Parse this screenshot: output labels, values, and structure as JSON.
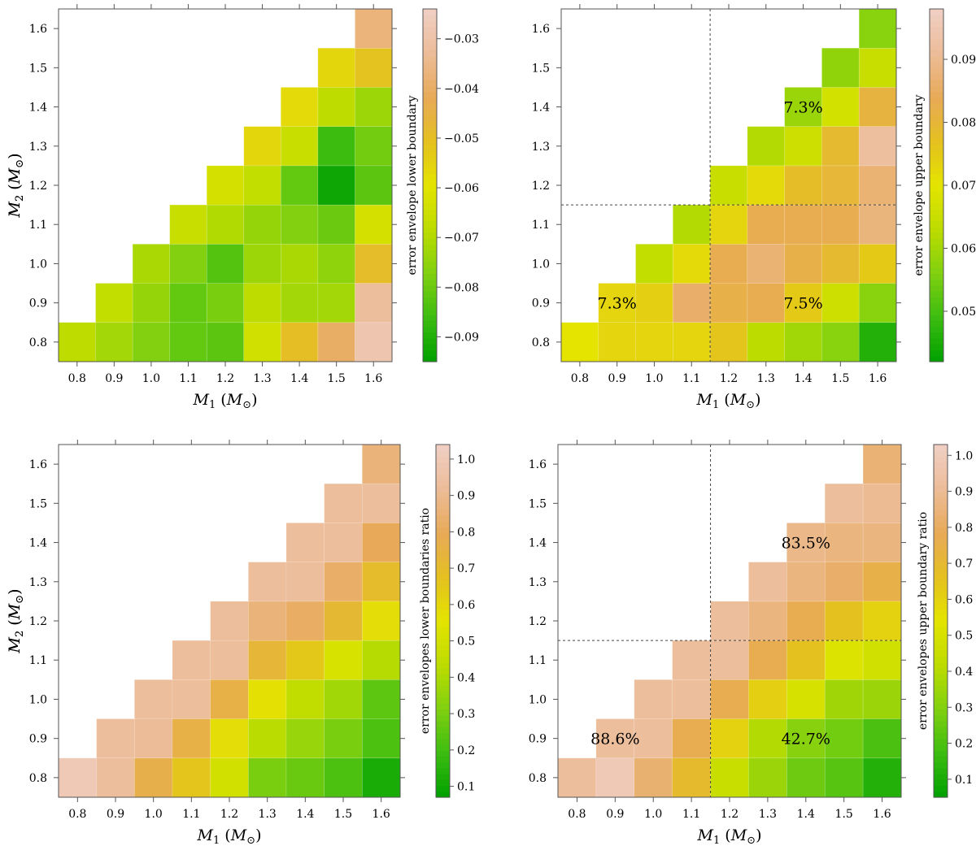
{
  "chart_data": [
    {
      "type": "heatmap",
      "xlabel": "M₁ (M⊙)",
      "ylabel": "M₂ (M⊙)",
      "x": [
        0.8,
        0.9,
        1.0,
        1.1,
        1.2,
        1.3,
        1.4,
        1.5,
        1.6
      ],
      "y": [
        0.8,
        0.9,
        1.0,
        1.1,
        1.2,
        1.3,
        1.4,
        1.5,
        1.6
      ],
      "xlim": [
        0.75,
        1.65
      ],
      "ylim": [
        0.75,
        1.65
      ],
      "colorbar": {
        "label": "error envelope lower boundary",
        "range": [
          -0.095,
          -0.024
        ],
        "ticks": [
          -0.09,
          -0.08,
          -0.07,
          -0.06,
          -0.05,
          -0.04,
          -0.03
        ],
        "tick_labels": [
          "−0.09",
          "−0.08",
          "−0.07",
          "−0.06",
          "−0.05",
          "−0.04",
          "−0.03"
        ]
      },
      "values": [
        [
          -0.068,
          -0.072,
          -0.077,
          -0.081,
          -0.082,
          -0.064,
          -0.05,
          -0.04,
          -0.028
        ],
        [
          null,
          -0.067,
          -0.074,
          -0.081,
          -0.078,
          -0.068,
          -0.072,
          -0.072,
          -0.032
        ],
        [
          null,
          null,
          -0.071,
          -0.077,
          -0.083,
          -0.073,
          -0.071,
          -0.075,
          -0.049
        ],
        [
          null,
          null,
          null,
          -0.066,
          -0.07,
          -0.074,
          -0.077,
          -0.08,
          -0.063
        ],
        [
          null,
          null,
          null,
          null,
          -0.063,
          -0.067,
          -0.081,
          -0.093,
          -0.082
        ],
        [
          null,
          null,
          null,
          null,
          null,
          -0.056,
          -0.066,
          -0.086,
          -0.079
        ],
        [
          null,
          null,
          null,
          null,
          null,
          null,
          -0.057,
          -0.068,
          -0.073
        ],
        [
          null,
          null,
          null,
          null,
          null,
          null,
          null,
          -0.056,
          -0.051
        ],
        [
          null,
          null,
          null,
          null,
          null,
          null,
          null,
          null,
          -0.037
        ]
      ],
      "annotations": [],
      "divider": null
    },
    {
      "type": "heatmap",
      "xlabel": "M₁ (M⊙)",
      "ylabel": "M₂ (M⊙)",
      "x": [
        0.8,
        0.9,
        1.0,
        1.1,
        1.2,
        1.3,
        1.4,
        1.5,
        1.6
      ],
      "y": [
        0.8,
        0.9,
        1.0,
        1.1,
        1.2,
        1.3,
        1.4,
        1.5,
        1.6
      ],
      "xlim": [
        0.75,
        1.65
      ],
      "ylim": [
        0.75,
        1.65
      ],
      "colorbar": {
        "label": "error envelope upper boundary",
        "range": [
          0.042,
          0.098
        ],
        "ticks": [
          0.05,
          0.06,
          0.07,
          0.08,
          0.09
        ],
        "tick_labels": [
          "0.05",
          "0.06",
          "0.07",
          "0.08",
          "0.09"
        ]
      },
      "values": [
        [
          0.07,
          0.073,
          0.073,
          0.073,
          0.076,
          0.063,
          0.06,
          0.057,
          0.046
        ],
        [
          null,
          0.073,
          0.074,
          0.086,
          0.082,
          0.083,
          0.075,
          0.066,
          0.057
        ],
        [
          null,
          null,
          0.064,
          0.072,
          0.083,
          0.087,
          0.082,
          0.079,
          0.075
        ],
        [
          null,
          null,
          null,
          0.062,
          0.073,
          0.083,
          0.083,
          0.083,
          0.088
        ],
        [
          null,
          null,
          null,
          null,
          0.065,
          0.072,
          0.078,
          0.08,
          0.087
        ],
        [
          null,
          null,
          null,
          null,
          null,
          0.062,
          0.066,
          0.079,
          0.092
        ],
        [
          null,
          null,
          null,
          null,
          null,
          null,
          0.059,
          0.067,
          0.081
        ],
        [
          null,
          null,
          null,
          null,
          null,
          null,
          null,
          0.058,
          0.065
        ],
        [
          null,
          null,
          null,
          null,
          null,
          null,
          null,
          null,
          0.057
        ]
      ],
      "annotations": [
        {
          "x": 1.4,
          "y": 1.4,
          "text": "7.3%"
        },
        {
          "x": 0.9,
          "y": 0.9,
          "text": "7.3%"
        },
        {
          "x": 1.4,
          "y": 0.9,
          "text": "7.5%"
        }
      ],
      "divider": {
        "x": 1.15,
        "y": 1.15
      }
    },
    {
      "type": "heatmap",
      "xlabel": "M₁ (M⊙)",
      "ylabel": "M₂ (M⊙)",
      "x": [
        0.8,
        0.9,
        1.0,
        1.1,
        1.2,
        1.3,
        1.4,
        1.5,
        1.6
      ],
      "y": [
        0.8,
        0.9,
        1.0,
        1.1,
        1.2,
        1.3,
        1.4,
        1.5,
        1.6
      ],
      "xlim": [
        0.75,
        1.65
      ],
      "ylim": [
        0.75,
        1.65
      ],
      "colorbar": {
        "label": "error envelopes lower boundaries ratio",
        "range": [
          0.07,
          1.04
        ],
        "ticks": [
          0.1,
          0.2,
          0.3,
          0.4,
          0.5,
          0.6,
          0.7,
          0.8,
          0.9,
          1.0
        ],
        "tick_labels": [
          "0.1",
          "0.2",
          "0.3",
          "0.4",
          "0.5",
          "0.6",
          "0.7",
          "0.8",
          "0.9",
          "1.0"
        ]
      },
      "values": [
        [
          1.0,
          0.93,
          0.77,
          0.66,
          0.5,
          0.3,
          0.27,
          0.22,
          0.12
        ],
        [
          null,
          0.93,
          0.92,
          0.76,
          0.58,
          0.43,
          0.36,
          0.3,
          0.22
        ],
        [
          null,
          null,
          0.93,
          0.93,
          0.76,
          0.57,
          0.45,
          0.38,
          0.25
        ],
        [
          null,
          null,
          null,
          0.93,
          0.93,
          0.73,
          0.65,
          0.52,
          0.42
        ],
        [
          null,
          null,
          null,
          null,
          0.93,
          0.86,
          0.82,
          0.72,
          0.58
        ],
        [
          null,
          null,
          null,
          null,
          null,
          0.93,
          0.93,
          0.83,
          0.7
        ],
        [
          null,
          null,
          null,
          null,
          null,
          null,
          0.93,
          0.93,
          0.8
        ],
        [
          null,
          null,
          null,
          null,
          null,
          null,
          null,
          0.93,
          0.93
        ],
        [
          null,
          null,
          null,
          null,
          null,
          null,
          null,
          null,
          0.86
        ]
      ],
      "annotations": [],
      "divider": null
    },
    {
      "type": "heatmap",
      "xlabel": "M₁ (M⊙)",
      "ylabel": "M₂ (M⊙)",
      "x": [
        0.8,
        0.9,
        1.0,
        1.1,
        1.2,
        1.3,
        1.4,
        1.5,
        1.6
      ],
      "y": [
        0.8,
        0.9,
        1.0,
        1.1,
        1.2,
        1.3,
        1.4,
        1.5,
        1.6
      ],
      "xlim": [
        0.75,
        1.65
      ],
      "ylim": [
        0.75,
        1.65
      ],
      "colorbar": {
        "label": "error envelopes upper boundary ratio",
        "range": [
          0.05,
          1.03
        ],
        "ticks": [
          0.1,
          0.2,
          0.3,
          0.4,
          0.5,
          0.6,
          0.7,
          0.8,
          0.9,
          1.0
        ],
        "tick_labels": [
          "0.1",
          "0.2",
          "0.3",
          "0.4",
          "0.5",
          "0.6",
          "0.7",
          "0.8",
          "0.9",
          "1.0"
        ]
      },
      "values": [
        [
          0.92,
          0.99,
          0.83,
          0.69,
          0.45,
          0.35,
          0.26,
          0.22,
          0.12
        ],
        [
          null,
          0.92,
          0.92,
          0.77,
          0.6,
          0.4,
          0.31,
          0.27,
          0.2
        ],
        [
          null,
          null,
          0.92,
          0.92,
          0.77,
          0.61,
          0.5,
          0.36,
          0.35
        ],
        [
          null,
          null,
          null,
          0.92,
          0.92,
          0.77,
          0.66,
          0.52,
          0.48
        ],
        [
          null,
          null,
          null,
          null,
          0.92,
          0.86,
          0.77,
          0.66,
          0.6
        ],
        [
          null,
          null,
          null,
          null,
          null,
          0.92,
          0.86,
          0.82,
          0.75
        ],
        [
          null,
          null,
          null,
          null,
          null,
          null,
          0.88,
          0.86,
          0.86
        ],
        [
          null,
          null,
          null,
          null,
          null,
          null,
          null,
          0.92,
          0.9
        ],
        [
          null,
          null,
          null,
          null,
          null,
          null,
          null,
          null,
          0.84
        ]
      ],
      "annotations": [
        {
          "x": 1.4,
          "y": 1.4,
          "text": "83.5%"
        },
        {
          "x": 0.9,
          "y": 0.9,
          "text": "88.6%"
        },
        {
          "x": 1.4,
          "y": 0.9,
          "text": "42.7%"
        }
      ],
      "divider": {
        "x": 1.15,
        "y": 1.15
      }
    }
  ],
  "colors": {
    "colormap": [
      "#00a000",
      "#3cbc10",
      "#80d010",
      "#bcdc00",
      "#e4e400",
      "#e4c020",
      "#e8aa58",
      "#ecbc98",
      "#f0cfc4"
    ],
    "axis": "#555555",
    "divider": "#444444"
  }
}
